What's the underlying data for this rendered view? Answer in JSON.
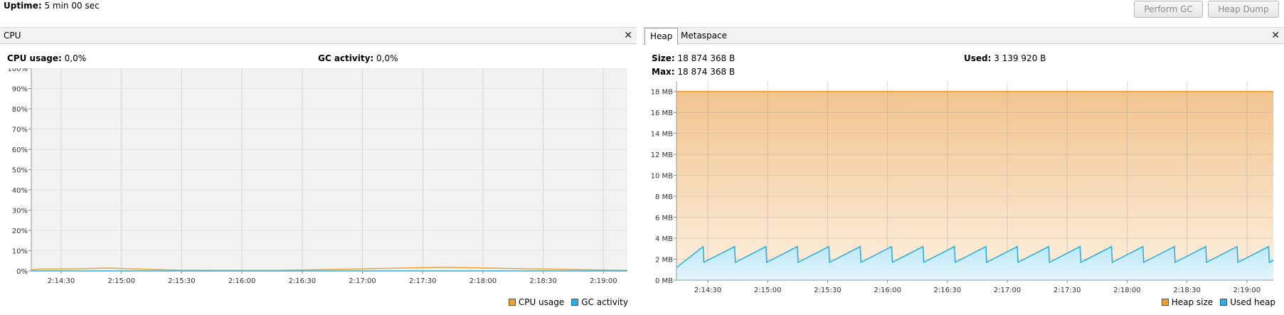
{
  "header": {
    "uptime_label": "Uptime:",
    "uptime_value": "5 min 00 sec",
    "perform_gc_label": "Perform GC",
    "heap_dump_label": "Heap Dump"
  },
  "cpu_panel": {
    "title": "CPU",
    "close_icon": "close-icon",
    "cpu_usage_label": "CPU usage:",
    "cpu_usage_value": "0,0%",
    "gc_activity_label": "GC activity:",
    "gc_activity_value": "0,0%",
    "legend": [
      {
        "label": "CPU usage",
        "color": "#f0a030"
      },
      {
        "label": "GC activity",
        "color": "#2ab0e0"
      }
    ]
  },
  "heap_panel": {
    "tabs": [
      "Heap",
      "Metaspace"
    ],
    "active_tab": "Heap",
    "close_icon": "close-icon",
    "size_label": "Size:",
    "size_value": "18 874 368 B",
    "max_label": "Max:",
    "max_value": "18 874 368 B",
    "used_label": "Used:",
    "used_value": "3 139 920 B",
    "legend": [
      {
        "label": "Heap size",
        "color": "#f0a030"
      },
      {
        "label": "Used heap",
        "color": "#2ab0e0"
      }
    ]
  },
  "chart_data": [
    {
      "type": "area",
      "name": "CPU",
      "x_ticks": [
        "2:14:30",
        "2:15:00",
        "2:15:30",
        "2:16:00",
        "2:16:30",
        "2:17:00",
        "2:17:30",
        "2:18:00",
        "2:18:30",
        "2:19:00"
      ],
      "y_ticks": [
        "0%",
        "10%",
        "20%",
        "30%",
        "40%",
        "50%",
        "60%",
        "70%",
        "80%",
        "90%",
        "100%"
      ],
      "ylim": [
        0,
        100
      ],
      "series": [
        {
          "name": "CPU usage",
          "color": "#f0a030",
          "points": [
            [
              0,
              0.8
            ],
            [
              2,
              0.6
            ],
            [
              10,
              0.9
            ],
            [
              60,
              1.0
            ],
            [
              100,
              1.4
            ],
            [
              200,
              0.3
            ],
            [
              330,
              0.2
            ],
            [
              555,
              1.8
            ],
            [
              800,
              0.2
            ]
          ]
        },
        {
          "name": "GC activity",
          "color": "#2ab0e0",
          "points": [
            [
              0,
              0
            ],
            [
              800,
              0
            ]
          ]
        }
      ],
      "grid": true
    },
    {
      "type": "area",
      "name": "Heap",
      "x_ticks": [
        "2:14:30",
        "2:15:00",
        "2:15:30",
        "2:16:00",
        "2:16:30",
        "2:17:00",
        "2:17:30",
        "2:18:00",
        "2:18:30",
        "2:19:00"
      ],
      "y_ticks": [
        "0 MB",
        "2 MB",
        "4 MB",
        "6 MB",
        "8 MB",
        "10 MB",
        "12 MB",
        "14 MB",
        "16 MB",
        "18 MB"
      ],
      "ylim": [
        0,
        19
      ],
      "series": [
        {
          "name": "Heap size",
          "color": "#f0a030",
          "constant_mb": 18.0
        },
        {
          "name": "Used heap",
          "color": "#2ab0e0",
          "sawtooth": {
            "min_mb": 1.7,
            "max_mb": 3.2,
            "cycles": 19,
            "start_mb": 1.2
          }
        }
      ],
      "grid": true
    }
  ]
}
